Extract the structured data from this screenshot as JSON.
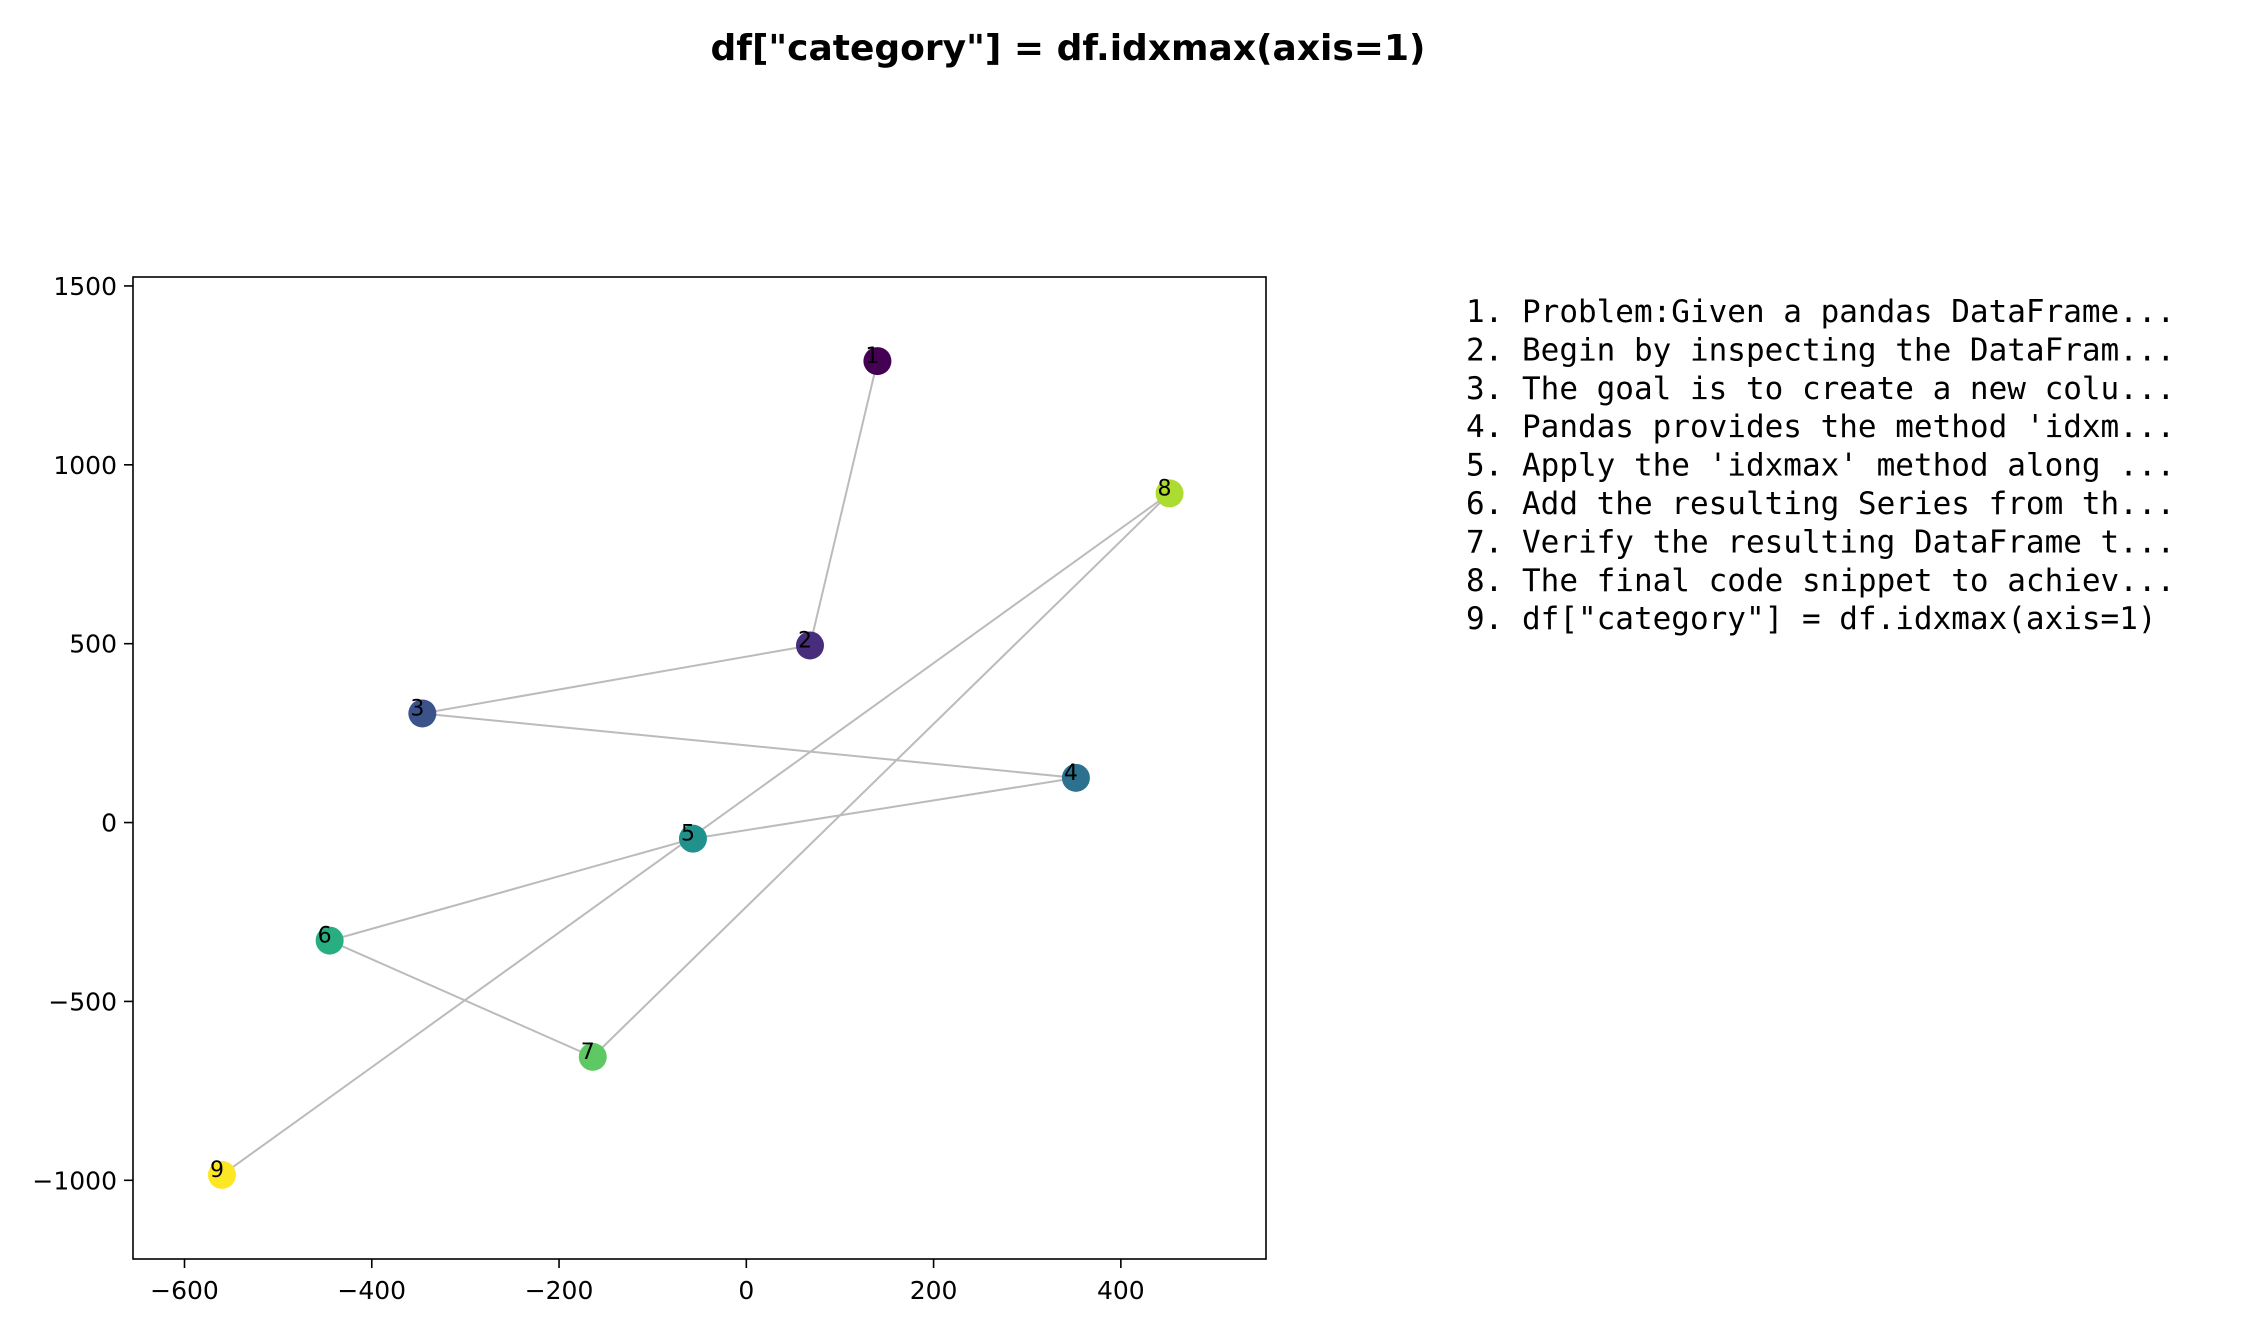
{
  "chart_data": {
    "type": "scatter",
    "title": "df[\"category\"] = df.idxmax(axis=1)",
    "xlim": [
      -655,
      555
    ],
    "ylim": [
      -1220,
      1525
    ],
    "x_ticks": [
      -600,
      -400,
      -200,
      0,
      200,
      400
    ],
    "y_ticks": [
      -1000,
      -500,
      0,
      500,
      1000,
      1500
    ],
    "x_tick_labels": [
      "−600",
      "−400",
      "−200",
      "0",
      "200",
      "400"
    ],
    "y_tick_labels": [
      "−1000",
      "−500",
      "0",
      "500",
      "1000",
      "1500"
    ],
    "grid": false,
    "colormap": "viridis",
    "connector_color": "#bbbbbb",
    "points": [
      {
        "label": "1",
        "x": 140,
        "y": 1290,
        "color": "#440154"
      },
      {
        "label": "2",
        "x": 68,
        "y": 495,
        "color": "#472d7b"
      },
      {
        "label": "3",
        "x": -346,
        "y": 305,
        "color": "#3b528b"
      },
      {
        "label": "4",
        "x": 352,
        "y": 125,
        "color": "#2c728e"
      },
      {
        "label": "5",
        "x": -57,
        "y": -45,
        "color": "#21918c"
      },
      {
        "label": "6",
        "x": -445,
        "y": -330,
        "color": "#28ae80"
      },
      {
        "label": "7",
        "x": -164,
        "y": -655,
        "color": "#5ec962"
      },
      {
        "label": "8",
        "x": 452,
        "y": 920,
        "color": "#addc30"
      },
      {
        "label": "9",
        "x": -560,
        "y": -985,
        "color": "#fde725"
      }
    ],
    "steps": [
      "1. Problem:Given a pandas DataFrame...",
      "2. Begin by inspecting the DataFram...",
      "3. The goal is to create a new colu...",
      "4. Pandas provides the method 'idxm...",
      "5. Apply the 'idxmax' method along ...",
      "6. Add the resulting Series from th...",
      "7. Verify the resulting DataFrame t...",
      "8. The final code snippet to achiev...",
      "9. df[\"category\"] = df.idxmax(axis=1)"
    ]
  }
}
